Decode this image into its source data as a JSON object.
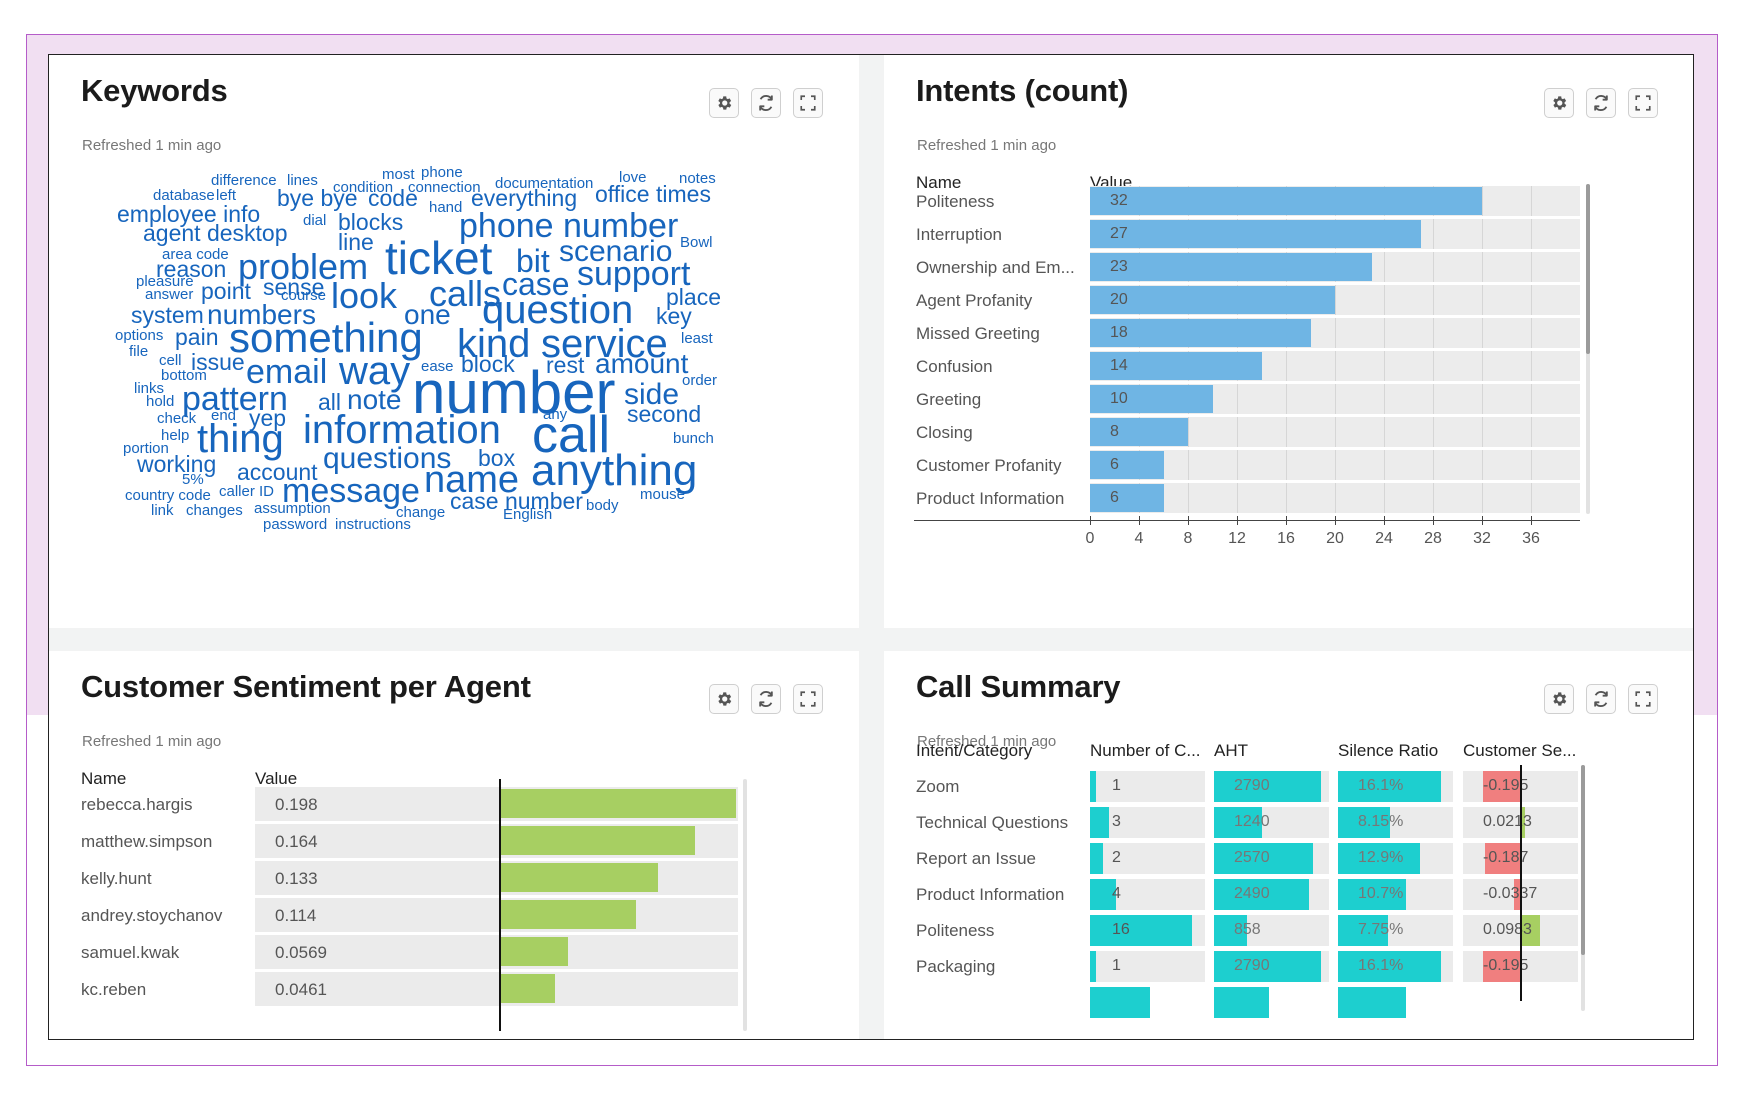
{
  "panel_labels": {
    "refreshed": "Refreshed 1 min ago",
    "name_header": "Name",
    "value_header": "Value"
  },
  "icons": [
    "gear-icon",
    "refresh-icon",
    "fullscreen-icon"
  ],
  "colors": {
    "keyword_blue": "#1765bd",
    "intent_bar": "#6fb5e4",
    "sentiment_bar": "#a7cf62",
    "summary_teal": "#1dcfcf",
    "negative_red": "#f07f7f",
    "frame_purple": "#b55cc9"
  },
  "keywords": {
    "title": "Keywords",
    "words": [
      {
        "t": "difference",
        "s": 15
      },
      {
        "t": "lines",
        "s": 15
      },
      {
        "t": "condition",
        "s": 15
      },
      {
        "t": "most",
        "s": 15
      },
      {
        "t": "phone",
        "s": 15
      },
      {
        "t": "connection",
        "s": 15
      },
      {
        "t": "documentation",
        "s": 15
      },
      {
        "t": "love",
        "s": 15
      },
      {
        "t": "notes",
        "s": 15
      },
      {
        "t": "database",
        "s": 15
      },
      {
        "t": "left",
        "s": 15
      },
      {
        "t": "bye bye",
        "s": 23
      },
      {
        "t": "code",
        "s": 23
      },
      {
        "t": "everything",
        "s": 23
      },
      {
        "t": "office",
        "s": 23
      },
      {
        "t": "times",
        "s": 23
      },
      {
        "t": "employee info",
        "s": 23
      },
      {
        "t": "dial",
        "s": 15
      },
      {
        "t": "hand",
        "s": 15
      },
      {
        "t": "blocks",
        "s": 23
      },
      {
        "t": "phone number",
        "s": 34
      },
      {
        "t": "agent desktop",
        "s": 23
      },
      {
        "t": "line",
        "s": 23
      },
      {
        "t": "ticket",
        "s": 46
      },
      {
        "t": "bit",
        "s": 32
      },
      {
        "t": "scenario",
        "s": 30
      },
      {
        "t": "Bowl",
        "s": 15
      },
      {
        "t": "area code",
        "s": 15
      },
      {
        "t": "reason",
        "s": 23
      },
      {
        "t": "problem",
        "s": 36
      },
      {
        "t": "case",
        "s": 32
      },
      {
        "t": "support",
        "s": 34
      },
      {
        "t": "pleasure",
        "s": 15
      },
      {
        "t": "sense",
        "s": 23
      },
      {
        "t": "point",
        "s": 23
      },
      {
        "t": "answer",
        "s": 15
      },
      {
        "t": "course",
        "s": 15
      },
      {
        "t": "look",
        "s": 36
      },
      {
        "t": "calls",
        "s": 36
      },
      {
        "t": "place",
        "s": 23
      },
      {
        "t": "system",
        "s": 23
      },
      {
        "t": "numbers",
        "s": 28
      },
      {
        "t": "one",
        "s": 28
      },
      {
        "t": "question",
        "s": 40
      },
      {
        "t": "key",
        "s": 23
      },
      {
        "t": "options",
        "s": 15
      },
      {
        "t": "pain",
        "s": 23
      },
      {
        "t": "something",
        "s": 42
      },
      {
        "t": "kind",
        "s": 40
      },
      {
        "t": "service",
        "s": 40
      },
      {
        "t": "least",
        "s": 15
      },
      {
        "t": "file",
        "s": 15
      },
      {
        "t": "cell",
        "s": 15
      },
      {
        "t": "issue",
        "s": 23
      },
      {
        "t": "email",
        "s": 34
      },
      {
        "t": "way",
        "s": 40
      },
      {
        "t": "ease",
        "s": 15
      },
      {
        "t": "block",
        "s": 23
      },
      {
        "t": "rest",
        "s": 23
      },
      {
        "t": "amount",
        "s": 28
      },
      {
        "t": "bottom",
        "s": 15
      },
      {
        "t": "links",
        "s": 15
      },
      {
        "t": "number",
        "s": 60
      },
      {
        "t": "order",
        "s": 15
      },
      {
        "t": "pattern",
        "s": 34
      },
      {
        "t": "all",
        "s": 23
      },
      {
        "t": "note",
        "s": 28
      },
      {
        "t": "side",
        "s": 30
      },
      {
        "t": "hold",
        "s": 15
      },
      {
        "t": "check",
        "s": 15
      },
      {
        "t": "end",
        "s": 15
      },
      {
        "t": "yep",
        "s": 23
      },
      {
        "t": "any",
        "s": 15
      },
      {
        "t": "second",
        "s": 23
      },
      {
        "t": "information",
        "s": 40
      },
      {
        "t": "call",
        "s": 52
      },
      {
        "t": "help",
        "s": 15
      },
      {
        "t": "thing",
        "s": 40
      },
      {
        "t": "bunch",
        "s": 15
      },
      {
        "t": "portion",
        "s": 15
      },
      {
        "t": "working",
        "s": 23
      },
      {
        "t": "questions",
        "s": 30
      },
      {
        "t": "box",
        "s": 23
      },
      {
        "t": "anything",
        "s": 44
      },
      {
        "t": "account",
        "s": 23
      },
      {
        "t": "5%",
        "s": 15
      },
      {
        "t": "name",
        "s": 38
      },
      {
        "t": "message",
        "s": 34
      },
      {
        "t": "country code",
        "s": 15
      },
      {
        "t": "caller ID",
        "s": 15
      },
      {
        "t": "case number",
        "s": 23
      },
      {
        "t": "mouse",
        "s": 15
      },
      {
        "t": "body",
        "s": 15
      },
      {
        "t": "link",
        "s": 15
      },
      {
        "t": "changes",
        "s": 15
      },
      {
        "t": "assumption",
        "s": 15
      },
      {
        "t": "change",
        "s": 15
      },
      {
        "t": "English",
        "s": 15
      },
      {
        "t": "password",
        "s": 15
      },
      {
        "t": "instructions",
        "s": 15
      }
    ]
  },
  "intents": {
    "title": "Intents (count)",
    "rows": [
      {
        "name": "Politeness",
        "value": 32
      },
      {
        "name": "Interruption",
        "value": 27
      },
      {
        "name": "Ownership and Em...",
        "value": 23
      },
      {
        "name": "Agent Profanity",
        "value": 20
      },
      {
        "name": "Missed Greeting",
        "value": 18
      },
      {
        "name": "Confusion",
        "value": 14
      },
      {
        "name": "Greeting",
        "value": 10
      },
      {
        "name": "Closing",
        "value": 8
      },
      {
        "name": "Customer Profanity",
        "value": 6
      },
      {
        "name": "Product Information",
        "value": 6
      }
    ],
    "axis_ticks": [
      "0",
      "4",
      "8",
      "12",
      "16",
      "20",
      "24",
      "28",
      "32",
      "36"
    ],
    "axis_max": 40
  },
  "sentiment": {
    "title": "Customer Sentiment per Agent",
    "rows": [
      {
        "name": "rebecca.hargis",
        "value": "0.198",
        "v": 0.198
      },
      {
        "name": "matthew.simpson",
        "value": "0.164",
        "v": 0.164
      },
      {
        "name": "kelly.hunt",
        "value": "0.133",
        "v": 0.133
      },
      {
        "name": "andrey.stoychanov",
        "value": "0.114",
        "v": 0.114
      },
      {
        "name": "samuel.kwak",
        "value": "0.0569",
        "v": 0.0569
      },
      {
        "name": "kc.reben",
        "value": "0.0461",
        "v": 0.0461
      }
    ],
    "scale_max": 0.2
  },
  "summary": {
    "title": "Call Summary",
    "headers": [
      "Intent/Category",
      "Number of C...",
      "AHT",
      "Silence Ratio",
      "Customer Se..."
    ],
    "rows": [
      {
        "name": "Zoom",
        "count": "1",
        "c": 1,
        "aht": "2790",
        "a": 2790,
        "silence": "16.1%",
        "s": 16.1,
        "cs": "-0.195",
        "cv": -0.195
      },
      {
        "name": "Technical Questions",
        "count": "3",
        "c": 3,
        "aht": "1240",
        "a": 1240,
        "silence": "8.15%",
        "s": 8.15,
        "cs": "0.0213",
        "cv": 0.0213
      },
      {
        "name": "Report an Issue",
        "count": "2",
        "c": 2,
        "aht": "2570",
        "a": 2570,
        "silence": "12.9%",
        "s": 12.9,
        "cs": "-0.187",
        "cv": -0.187
      },
      {
        "name": "Product Information",
        "count": "4",
        "c": 4,
        "aht": "2490",
        "a": 2490,
        "silence": "10.7%",
        "s": 10.7,
        "cs": "-0.0337",
        "cv": -0.0337
      },
      {
        "name": "Politeness",
        "count": "16",
        "c": 16,
        "aht": "858",
        "a": 858,
        "silence": "7.75%",
        "s": 7.75,
        "cs": "0.0983",
        "cv": 0.0983
      },
      {
        "name": "Packaging",
        "count": "1",
        "c": 1,
        "aht": "2790",
        "a": 2790,
        "silence": "16.1%",
        "s": 16.1,
        "cs": "-0.195",
        "cv": -0.195
      }
    ],
    "count_max": 18,
    "aht_max": 3000,
    "silence_max": 18,
    "cs_range": [
      -0.35,
      0.2
    ]
  }
}
